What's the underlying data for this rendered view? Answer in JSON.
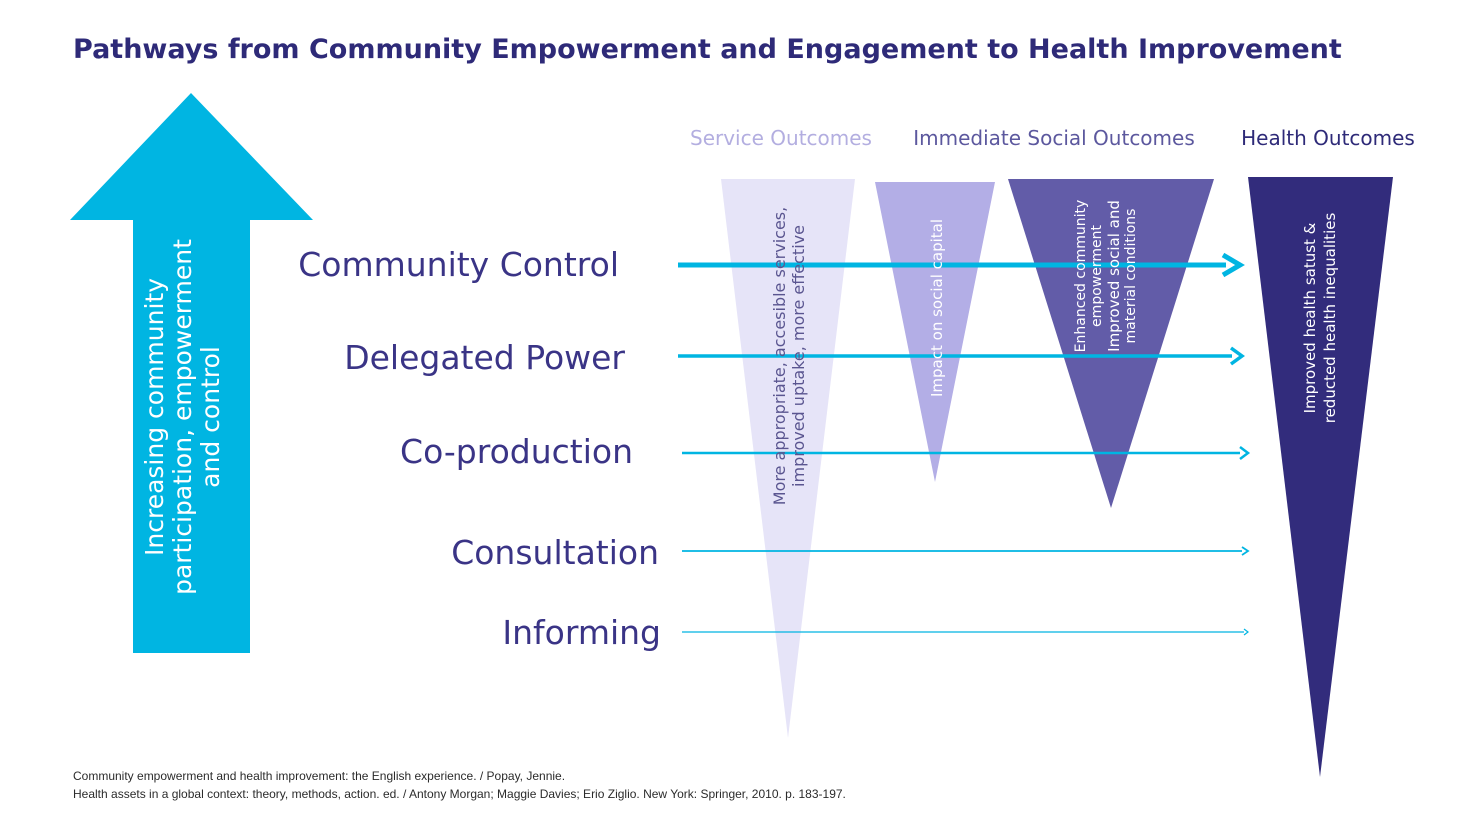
{
  "title": "Pathways from Community Empowerment and Engagement to Health Improvement",
  "arrow": {
    "lines": [
      "Increasing community",
      "participation, empowerment",
      "and control"
    ],
    "color": "#00b5e2"
  },
  "levels": [
    {
      "label": "Community Control"
    },
    {
      "label": "Delegated Power"
    },
    {
      "label": "Co-production"
    },
    {
      "label": "Consultation"
    },
    {
      "label": "Informing"
    }
  ],
  "columns": [
    {
      "header": "Service Outcomes",
      "header_color": "#b3aee0"
    },
    {
      "header": "Immediate Social Outcomes",
      "header_color": "#5c589e"
    },
    {
      "header": "Health Outcomes",
      "header_color": "#2e2a78"
    }
  ],
  "wedges": [
    {
      "lines": [
        "More appropriate, accesible services,",
        "improved uptake, more effective"
      ],
      "fill": "#e6e4f8",
      "text_color": "#5a5590"
    },
    {
      "lines": [
        "Impact on social capital"
      ],
      "fill": "#b3aee6",
      "text_color": "#ffffff"
    },
    {
      "lines": [
        "Enhanced community",
        "empowerment",
        "Improved social and",
        "material conditions"
      ],
      "fill": "#625ca8",
      "text_color": "#ffffff"
    },
    {
      "lines": [
        "Improved health satust &",
        "reducted health inequalities"
      ],
      "fill": "#322c7c",
      "text_color": "#ffffff"
    }
  ],
  "line_color": "#00b5e2",
  "references": [
    "Community empowerment and health improvement: the English experience. / Popay, Jennie.",
    "Health assets in a global context: theory, methods, action. ed. / Antony Morgan; Maggie Davies; Erio Ziglio. New York: Springer, 2010. p. 183-197."
  ]
}
